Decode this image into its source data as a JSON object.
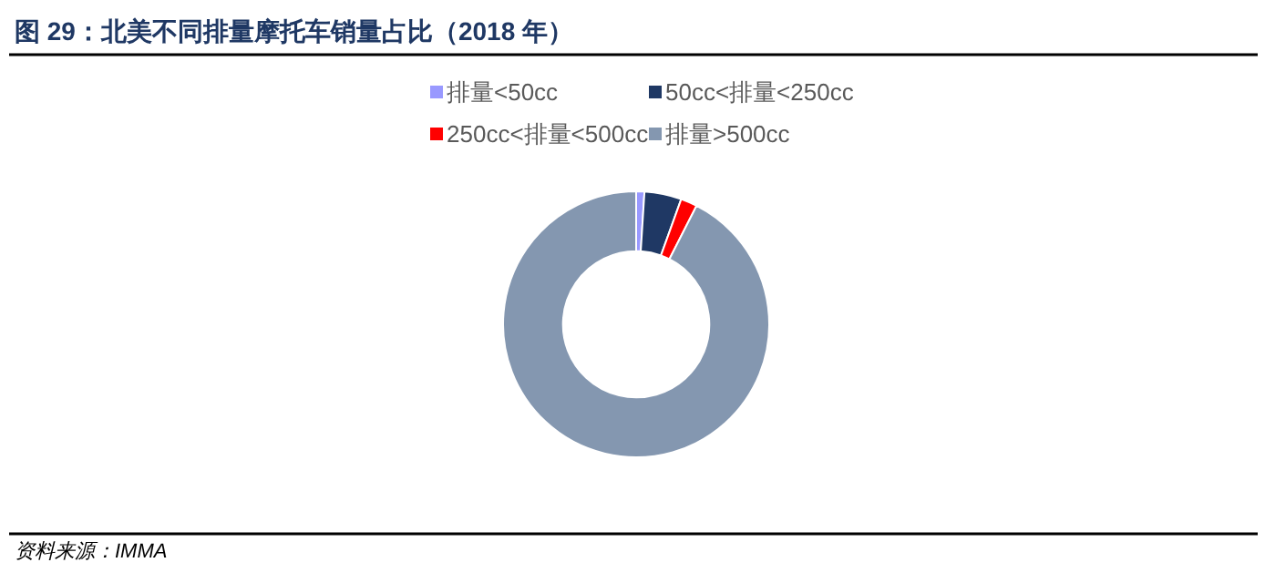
{
  "chart_data": {
    "type": "donut",
    "title": "图 29：北美不同排量摩托车销量占比（2018 年）",
    "categories": [
      "排量<50cc",
      "50cc<排量<250cc",
      "250cc<排量<500cc",
      "排量>500cc"
    ],
    "values": [
      1,
      4.5,
      2,
      92.5
    ],
    "colors": [
      "#9999ff",
      "#1f3864",
      "#ff0000",
      "#8497b0"
    ],
    "legend": "top",
    "annotations": [
      "资料来源：IMMA"
    ]
  }
}
